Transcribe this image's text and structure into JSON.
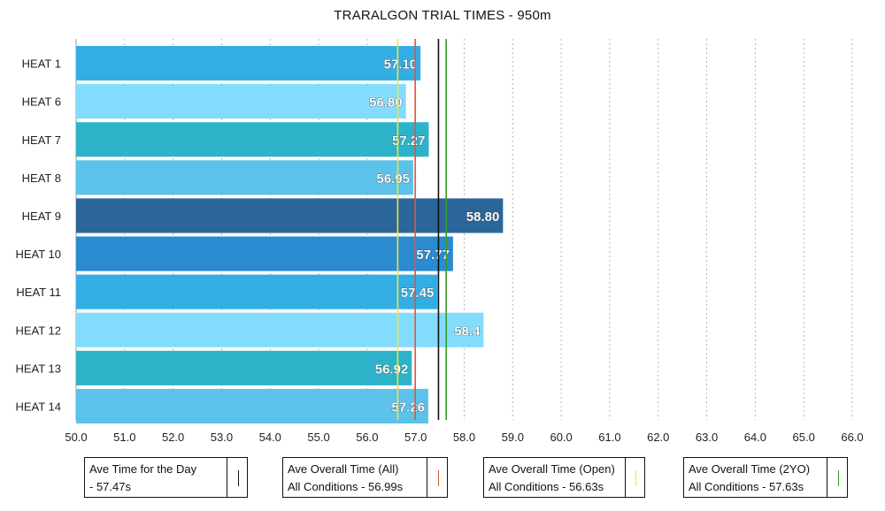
{
  "chart_data": {
    "type": "bar",
    "orientation": "horizontal",
    "title": "TRARALGON TRIAL TIMES - 950m",
    "categories": [
      "HEAT 1",
      "HEAT 6",
      "HEAT 7",
      "HEAT 8",
      "HEAT 9",
      "HEAT 10",
      "HEAT 11",
      "HEAT 12",
      "HEAT 13",
      "HEAT 14"
    ],
    "values": [
      57.1,
      56.8,
      57.27,
      56.95,
      58.8,
      57.77,
      57.45,
      58.4,
      56.92,
      57.26
    ],
    "value_labels": [
      "57.10",
      "56.80",
      "57.27",
      "56.95",
      "58.80",
      "57.77",
      "57.45",
      "58.4",
      "56.92",
      "57.26"
    ],
    "bar_colors": [
      "#33aee5",
      "#82dcfd",
      "#2db3c9",
      "#5bc2ea",
      "#2a6699",
      "#2a8bd0",
      "#33aee5",
      "#82dcfd",
      "#2db3c9",
      "#5bc2ea"
    ],
    "xlim": [
      50.0,
      66.0
    ],
    "x_ticks": [
      "50.0",
      "51.0",
      "52.0",
      "53.0",
      "54.0",
      "55.0",
      "56.0",
      "57.0",
      "58.0",
      "59.0",
      "60.0",
      "61.0",
      "62.0",
      "63.0",
      "64.0",
      "65.0",
      "66.0"
    ],
    "grid": "vertical-dotted",
    "reference_lines": [
      {
        "line1": "Ave Time for the Day",
        "line2": "- 57.47s",
        "value": 57.47,
        "color": "#111111"
      },
      {
        "line1": "Ave Overall Time (All)",
        "line2": "All Conditions - 56.99s",
        "value": 56.99,
        "color": "#e0553d"
      },
      {
        "line1": "Ave Overall Time (Open)",
        "line2": "All Conditions - 56.63s",
        "value": 56.63,
        "color": "#f2e33a"
      },
      {
        "line1": "Ave Overall Time (2YO)",
        "line2": "All Conditions - 57.63s",
        "value": 57.63,
        "color": "#3a9a2a"
      }
    ],
    "legend_position": "bottom"
  }
}
